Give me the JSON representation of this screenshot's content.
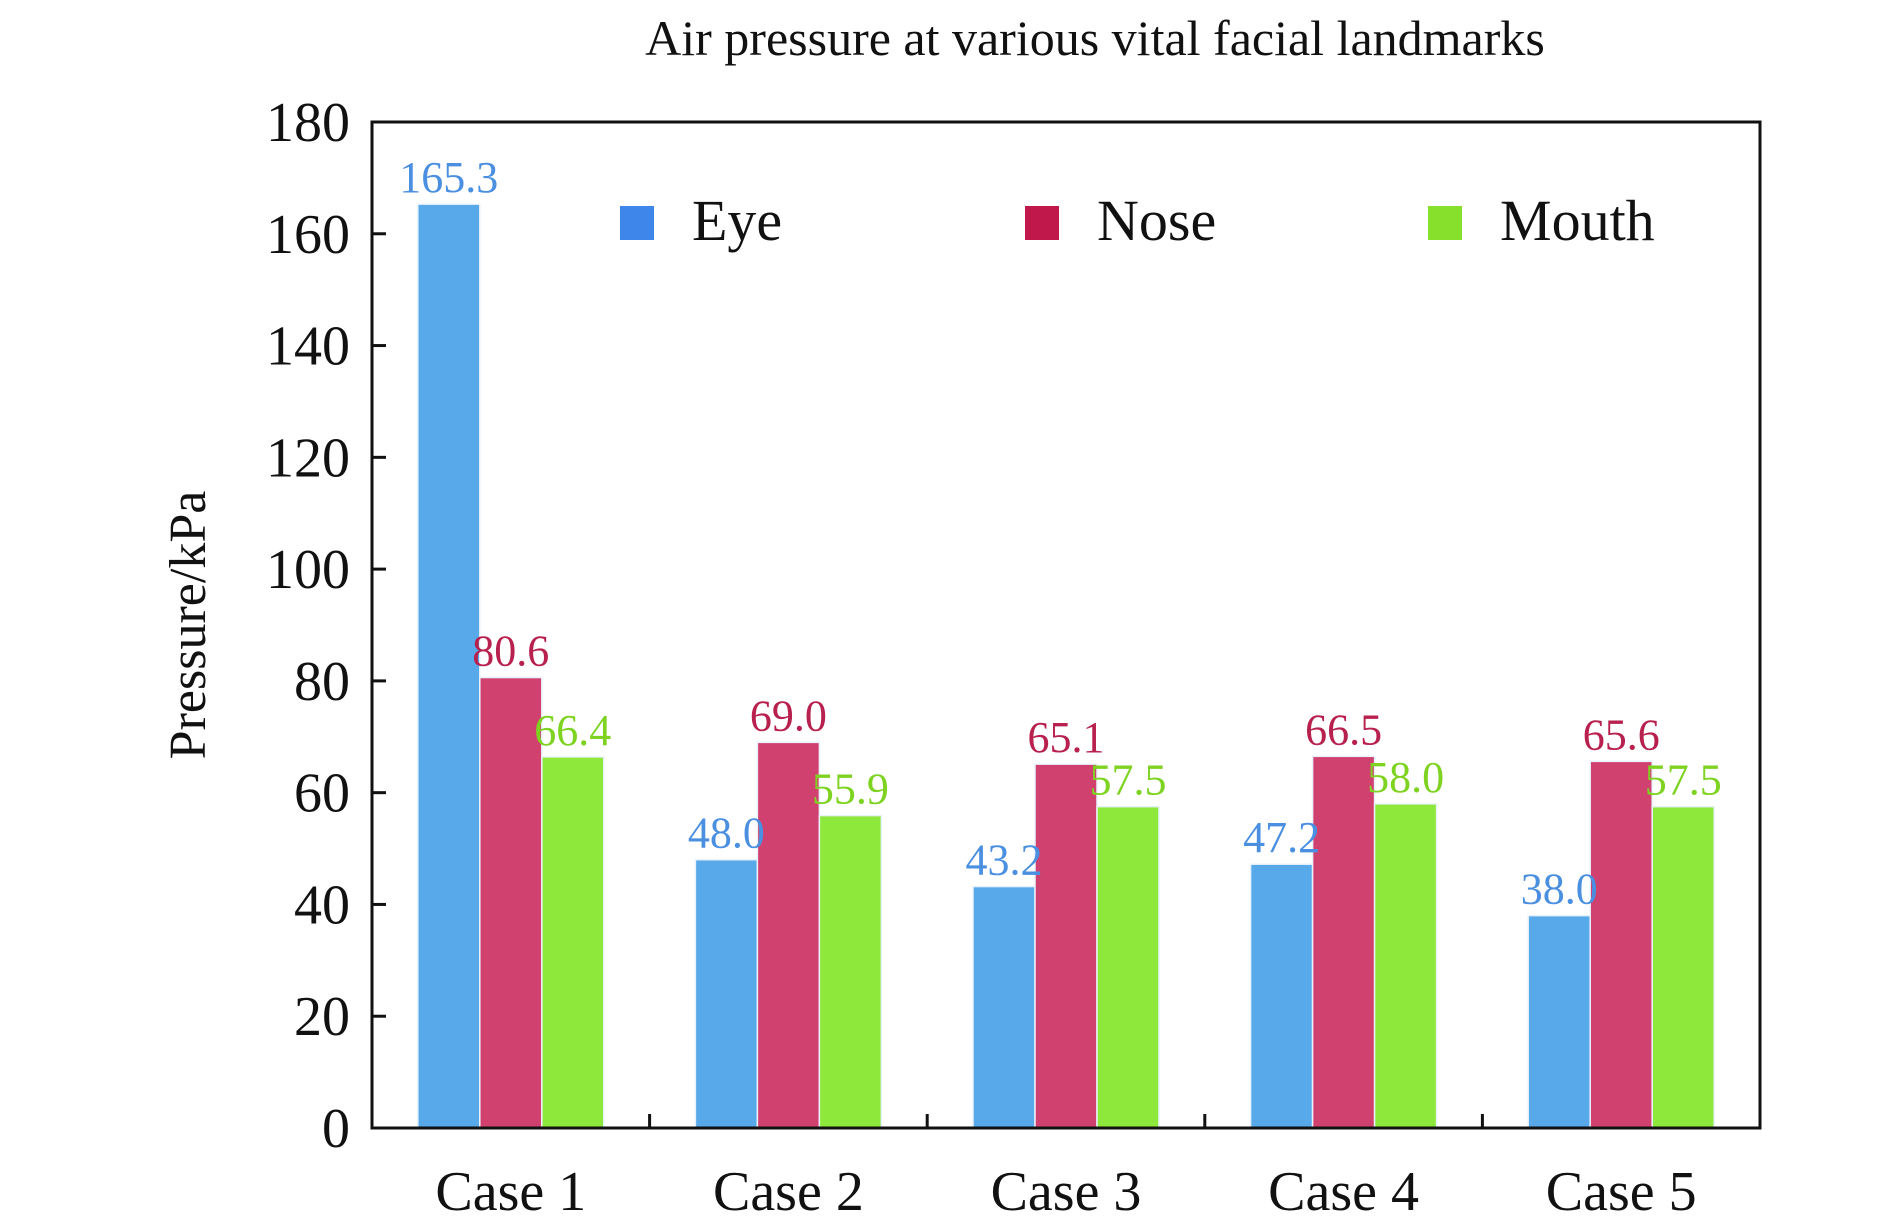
{
  "chart_data": {
    "type": "bar",
    "title": "Air pressure at various vital facial landmarks",
    "xlabel": "",
    "ylabel": "Pressure/kPa",
    "ylim": [
      0,
      180
    ],
    "yticks": [
      "0",
      "20",
      "40",
      "60",
      "80",
      "100",
      "120",
      "140",
      "160",
      "180"
    ],
    "grid": false,
    "legend_position": "top",
    "categories": [
      "Case 1",
      "Case 2",
      "Case 3",
      "Case 4",
      "Case 5"
    ],
    "series": [
      {
        "name": "Eye",
        "color": "#58a9e9",
        "label_color": "#4a8fe0",
        "legend_color": "#3f86ea",
        "values": [
          165.3,
          48.0,
          43.2,
          47.2,
          38.0
        ],
        "labels": [
          "165.3",
          "48.0",
          "43.2",
          "47.2",
          "38.0"
        ]
      },
      {
        "name": "Nose",
        "color": "#d1416f",
        "label_color": "#b8204e",
        "legend_color": "#c0184a",
        "values": [
          80.6,
          69.0,
          65.1,
          66.5,
          65.6
        ],
        "labels": [
          "80.6",
          "69.0",
          "65.1",
          "66.5",
          "65.6"
        ]
      },
      {
        "name": "Mouth",
        "color": "#8ee83c",
        "label_color": "#7ed321",
        "legend_color": "#86e02c",
        "values": [
          66.4,
          55.9,
          57.5,
          58.0,
          57.5
        ],
        "labels": [
          "66.4",
          "55.9",
          "57.5",
          "58.0",
          "57.5"
        ]
      }
    ]
  }
}
